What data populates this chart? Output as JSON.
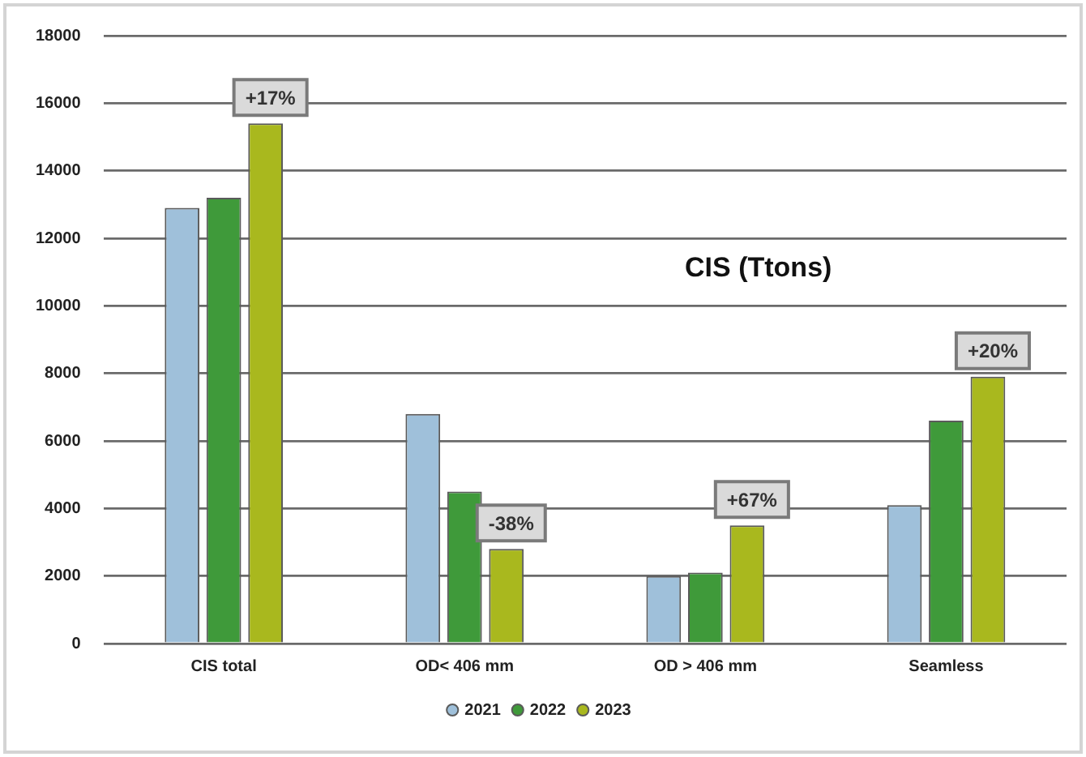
{
  "chart_data": {
    "type": "bar",
    "title": "CIS (Ttons)",
    "categories": [
      "CIS total",
      "OD< 406 mm",
      "OD > 406 mm",
      "Seamless"
    ],
    "series": [
      {
        "name": "2021",
        "color": "#9fc0da",
        "values": [
          12900,
          6800,
          2000,
          4100
        ]
      },
      {
        "name": "2022",
        "color": "#3f9a3a",
        "values": [
          13200,
          4500,
          2100,
          6600
        ]
      },
      {
        "name": "2023",
        "color": "#a9b81e",
        "values": [
          15400,
          2800,
          3500,
          7900
        ]
      }
    ],
    "ylim": [
      0,
      18000
    ],
    "yticks": [
      0,
      2000,
      4000,
      6000,
      8000,
      10000,
      12000,
      14000,
      16000,
      18000
    ],
    "grid": "y",
    "legend": "bottom",
    "annotations": [
      "+17%",
      "-38%",
      "+67%",
      "+20%"
    ]
  }
}
